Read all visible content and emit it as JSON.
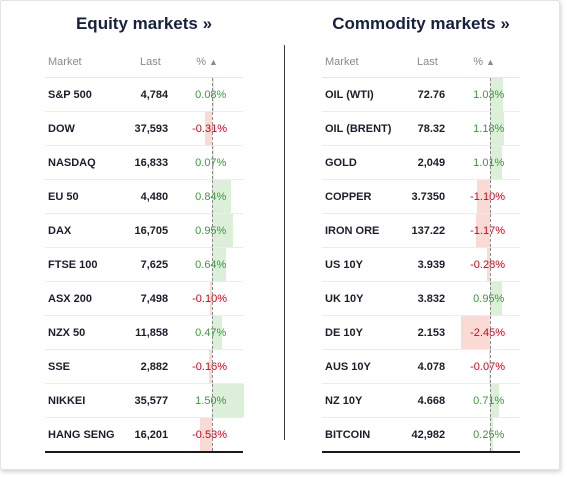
{
  "equity": {
    "title": "Equity markets »",
    "headers": {
      "market": "Market",
      "last": "Last",
      "pct": "%"
    },
    "rows": [
      {
        "name": "S&P 500",
        "last": "4,784",
        "pct": "0.08%",
        "value": 0.08
      },
      {
        "name": "DOW",
        "last": "37,593",
        "pct": "-0.31%",
        "value": -0.31
      },
      {
        "name": "NASDAQ",
        "last": "16,833",
        "pct": "0.07%",
        "value": 0.07
      },
      {
        "name": "EU 50",
        "last": "4,480",
        "pct": "0.84%",
        "value": 0.84
      },
      {
        "name": "DAX",
        "last": "16,705",
        "pct": "0.95%",
        "value": 0.95
      },
      {
        "name": "FTSE 100",
        "last": "7,625",
        "pct": "0.64%",
        "value": 0.64
      },
      {
        "name": "ASX 200",
        "last": "7,498",
        "pct": "-0.10%",
        "value": -0.1
      },
      {
        "name": "NZX 50",
        "last": "11,858",
        "pct": "0.47%",
        "value": 0.47
      },
      {
        "name": "SSE",
        "last": "2,882",
        "pct": "-0.16%",
        "value": -0.16
      },
      {
        "name": "NIKKEI",
        "last": "35,577",
        "pct": "1.50%",
        "value": 1.5
      },
      {
        "name": "HANG SENG",
        "last": "16,201",
        "pct": "-0.53%",
        "value": -0.53
      }
    ]
  },
  "commodity": {
    "title": "Commodity markets »",
    "headers": {
      "market": "Market",
      "last": "Last",
      "pct": "%"
    },
    "rows": [
      {
        "name": "OIL (WTI)",
        "last": "72.76",
        "pct": "1.03%",
        "value": 1.03
      },
      {
        "name": "OIL (BRENT)",
        "last": "78.32",
        "pct": "1.18%",
        "value": 1.18
      },
      {
        "name": "GOLD",
        "last": "2,049",
        "pct": "1.01%",
        "value": 1.01
      },
      {
        "name": "COPPER",
        "last": "3.7350",
        "pct": "-1.10%",
        "value": -1.1
      },
      {
        "name": "IRON ORE",
        "last": "137.22",
        "pct": "-1.17%",
        "value": -1.17
      },
      {
        "name": "US 10Y",
        "last": "3.939",
        "pct": "-0.28%",
        "value": -0.28
      },
      {
        "name": "UK 10Y",
        "last": "3.832",
        "pct": "0.95%",
        "value": 0.95
      },
      {
        "name": "DE 10Y",
        "last": "2.153",
        "pct": "-2.45%",
        "value": -2.45
      },
      {
        "name": "AUS 10Y",
        "last": "4.078",
        "pct": "-0.07%",
        "value": -0.07
      },
      {
        "name": "NZ 10Y",
        "last": "4.668",
        "pct": "0.71%",
        "value": 0.71
      },
      {
        "name": "BITCOIN",
        "last": "42,982",
        "pct": "0.25%",
        "value": 0.25
      }
    ]
  },
  "colors": {
    "positive_text": "#3a9a3a",
    "negative_text": "#d0021b",
    "positive_bar": "#dcefd9",
    "negative_bar": "#fadad4"
  },
  "icons": {
    "sort": "sort-ascending-icon"
  }
}
